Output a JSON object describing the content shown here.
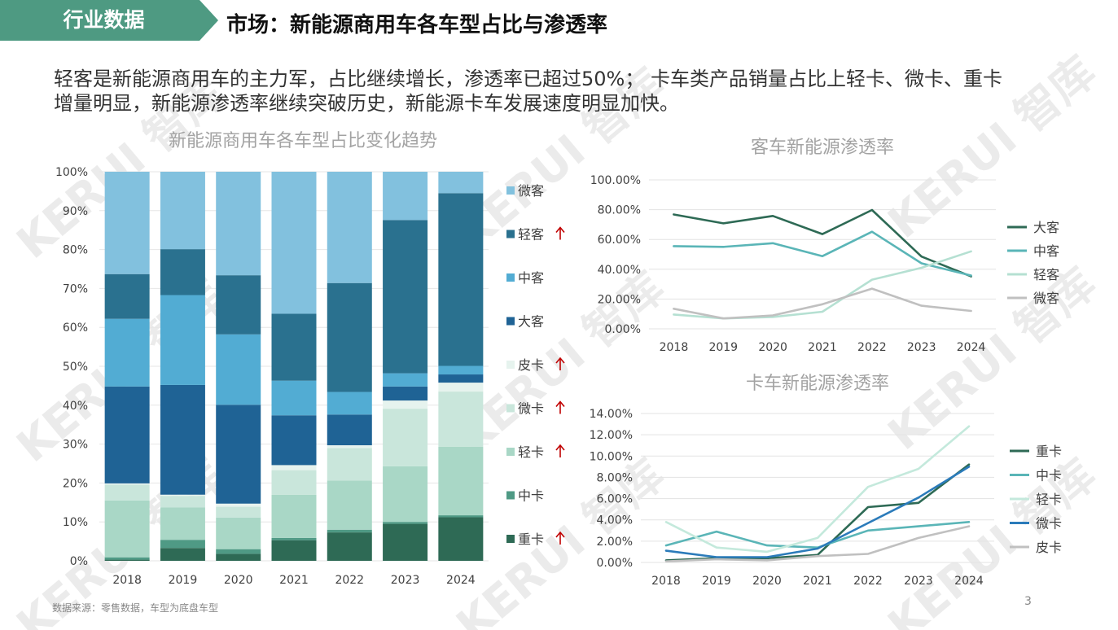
{
  "header": {
    "tag": "行业数据",
    "title": "市场：新能源商用车各车型占比与渗透率"
  },
  "summary": [
    "轻客是新能源商用车的主力军，占比继续增长，渗透率已超过50%； 卡车类产品销量占比上轻卡、微卡、重卡",
    "增量明显，新能源渗透率继续突破历史，新能源卡车发展速度明显加快。"
  ],
  "footer": {
    "source": "数据来源：零售数据，车型为底盘车型",
    "page": "3"
  },
  "watermark": "KERUI 智库",
  "colors": {
    "tag": "#4e9a82",
    "arrow": "#c00000"
  },
  "chart_data": [
    {
      "type": "bar",
      "stacked": true,
      "title": "新能源商用车各车型占比变化趋势",
      "categories": [
        "2018",
        "2019",
        "2020",
        "2021",
        "2022",
        "2023",
        "2024"
      ],
      "ylim": [
        0,
        100
      ],
      "yticks": [
        "0%",
        "10%",
        "20%",
        "30%",
        "40%",
        "50%",
        "60%",
        "70%",
        "80%",
        "90%",
        "100%"
      ],
      "legend_position": "right",
      "series": [
        {
          "name": "重卡",
          "color": "#2e6a55",
          "arrow": true,
          "values": [
            0.3,
            3.3,
            1.8,
            5.3,
            7.3,
            9.5,
            11.2
          ]
        },
        {
          "name": "中卡",
          "color": "#4f9a85",
          "arrow": false,
          "values": [
            0.6,
            2.1,
            1.2,
            0.6,
            0.7,
            0.5,
            0.5
          ]
        },
        {
          "name": "轻卡",
          "color": "#a9d7c6",
          "arrow": true,
          "values": [
            14.6,
            8.3,
            8.1,
            11.1,
            12.6,
            14.3,
            17.6
          ]
        },
        {
          "name": "微卡",
          "color": "#c9e6db",
          "arrow": true,
          "values": [
            4.1,
            3.0,
            2.8,
            6.3,
            8.4,
            14.8,
            14.2
          ]
        },
        {
          "name": "皮卡",
          "color": "#e6f3ee",
          "arrow": true,
          "values": [
            0.3,
            0.3,
            0.8,
            1.3,
            0.7,
            2.1,
            2.3
          ]
        },
        {
          "name": "大客",
          "color": "#1f6395",
          "arrow": false,
          "values": [
            24.9,
            28.2,
            25.4,
            12.8,
            7.9,
            3.6,
            2.1
          ]
        },
        {
          "name": "中客",
          "color": "#52acd3",
          "arrow": false,
          "values": [
            17.4,
            23.1,
            18.1,
            8.9,
            5.8,
            3.4,
            2.2
          ]
        },
        {
          "name": "轻客",
          "color": "#2a718f",
          "arrow": true,
          "values": [
            11.5,
            11.8,
            15.2,
            17.2,
            28.0,
            39.4,
            44.4
          ]
        },
        {
          "name": "微客",
          "color": "#82c1de",
          "arrow": false,
          "values": [
            26.3,
            19.9,
            26.6,
            36.5,
            28.6,
            12.4,
            5.5
          ]
        }
      ]
    },
    {
      "type": "line",
      "title": "客车新能源渗透率",
      "x": [
        "2018",
        "2019",
        "2020",
        "2021",
        "2022",
        "2023",
        "2024"
      ],
      "ylim": [
        0,
        100
      ],
      "yticks": [
        "0.00%",
        "20.00%",
        "40.00%",
        "60.00%",
        "80.00%",
        "100.00%"
      ],
      "legend_position": "right",
      "series": [
        {
          "name": "大客",
          "color": "#2e6a55",
          "values": [
            76.8,
            70.8,
            75.8,
            63.6,
            79.8,
            48.5,
            35.2
          ]
        },
        {
          "name": "中客",
          "color": "#5ab5b7",
          "values": [
            55.5,
            55.0,
            57.5,
            48.8,
            65.2,
            44.0,
            35.8
          ]
        },
        {
          "name": "轻客",
          "color": "#b5e0d2",
          "values": [
            9.6,
            7.0,
            8.0,
            11.5,
            33.0,
            41.0,
            52.0
          ]
        },
        {
          "name": "微客",
          "color": "#c0c0c0",
          "values": [
            13.5,
            7.0,
            9.0,
            16.5,
            27.0,
            15.5,
            12.0
          ]
        }
      ]
    },
    {
      "type": "line",
      "title": "卡车新能源渗透率",
      "x": [
        "2018",
        "2019",
        "2020",
        "2021",
        "2022",
        "2023",
        "2024"
      ],
      "ylim": [
        0,
        14
      ],
      "yticks": [
        "0.00%",
        "2.00%",
        "4.00%",
        "6.00%",
        "8.00%",
        "10.00%",
        "12.00%",
        "14.00%"
      ],
      "legend_position": "right",
      "series": [
        {
          "name": "重卡",
          "color": "#2e6a55",
          "values": [
            0.2,
            0.4,
            0.4,
            0.7,
            5.2,
            5.6,
            9.2
          ]
        },
        {
          "name": "中卡",
          "color": "#5ab5b7",
          "values": [
            1.6,
            2.9,
            1.6,
            1.4,
            3.0,
            3.4,
            3.8
          ]
        },
        {
          "name": "轻卡",
          "color": "#c4e9dc",
          "values": [
            3.8,
            1.4,
            1.0,
            2.3,
            7.1,
            8.8,
            12.8
          ]
        },
        {
          "name": "微卡",
          "color": "#2b7bba",
          "values": [
            1.1,
            0.5,
            0.5,
            1.3,
            3.7,
            6.1,
            9.0
          ]
        },
        {
          "name": "皮卡",
          "color": "#c0c0c0",
          "values": [
            0.1,
            0.3,
            0.2,
            0.6,
            0.8,
            2.3,
            3.4
          ]
        }
      ]
    }
  ]
}
